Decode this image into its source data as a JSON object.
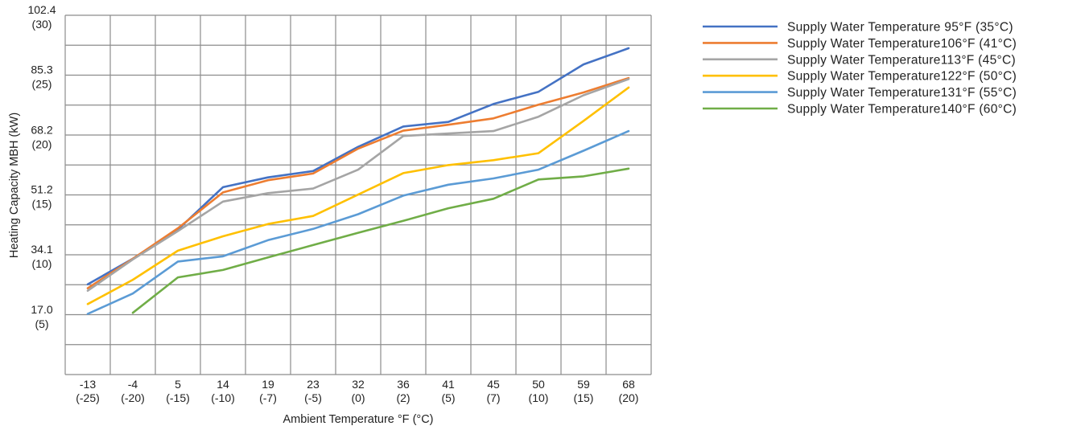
{
  "chart_data": {
    "type": "line",
    "xlabel": "Ambient Temperature °F (°C)",
    "ylabel": "Heating Capacity MBH (kW)",
    "categories": [
      {
        "f": "-13",
        "c": "(-25)"
      },
      {
        "f": "-4",
        "c": "(-20)"
      },
      {
        "f": "5",
        "c": "(-15)"
      },
      {
        "f": "14",
        "c": "(-10)"
      },
      {
        "f": "19",
        "c": "(-7)"
      },
      {
        "f": "23",
        "c": "(-5)"
      },
      {
        "f": "32",
        "c": "(0)"
      },
      {
        "f": "36",
        "c": "(2)"
      },
      {
        "f": "41",
        "c": "(5)"
      },
      {
        "f": "45",
        "c": "(7)"
      },
      {
        "f": "50",
        "c": "(10)"
      },
      {
        "f": "59",
        "c": "(15)"
      },
      {
        "f": "68",
        "c": "(20)"
      }
    ],
    "y_ticks": [
      {
        "mbh": "102.4",
        "kw": "(30)",
        "value": 102.4
      },
      {
        "mbh": "85.3",
        "kw": "(25)",
        "value": 85.3
      },
      {
        "mbh": "68.2",
        "kw": "(20)",
        "value": 68.2
      },
      {
        "mbh": "51.2",
        "kw": "(15)",
        "value": 51.2
      },
      {
        "mbh": "34.1",
        "kw": "(10)",
        "value": 34.1
      },
      {
        "mbh": "17.0",
        "kw": "(5)",
        "value": 17.0
      }
    ],
    "ylim": [
      0,
      102.4
    ],
    "grid": true,
    "legend_position": "top-right",
    "series": [
      {
        "name": "Supply Water Temperature 95°F (35°C)",
        "color": "#4472C4",
        "values": [
          25.7,
          33.0,
          41.3,
          53.4,
          56.2,
          58.0,
          64.9,
          70.7,
          72.0,
          77.1,
          80.6,
          88.4,
          93.0
        ]
      },
      {
        "name": "Supply Water Temperature106°F (41°C)",
        "color": "#ED7D31",
        "values": [
          24.6,
          33.0,
          41.7,
          51.9,
          55.4,
          57.3,
          64.4,
          69.5,
          71.2,
          73.0,
          76.9,
          80.4,
          84.5
        ]
      },
      {
        "name": "Supply Water Temperature113°F (45°C)",
        "color": "#A5A5A5",
        "values": [
          23.9,
          32.8,
          40.9,
          49.3,
          51.7,
          53.0,
          58.4,
          68.0,
          68.7,
          69.4,
          73.5,
          79.6,
          84.2
        ]
      },
      {
        "name": "Supply Water Temperature122°F (50°C)",
        "color": "#FFC000",
        "values": [
          20.1,
          27.0,
          35.3,
          39.4,
          42.9,
          45.2,
          51.3,
          57.4,
          59.7,
          61.1,
          63.1,
          72.3,
          81.8
        ]
      },
      {
        "name": "Supply Water Temperature131°F (55°C)",
        "color": "#5B9BD5",
        "values": [
          17.3,
          23.1,
          32.2,
          33.7,
          38.3,
          41.5,
          45.7,
          51.0,
          54.1,
          55.9,
          58.4,
          63.8,
          69.4
        ]
      },
      {
        "name": "Supply Water Temperature140°F (60°C)",
        "color": "#70AD47",
        "values": [
          null,
          17.6,
          27.7,
          29.8,
          33.4,
          36.9,
          40.4,
          43.8,
          47.4,
          50.1,
          55.6,
          56.5,
          58.7
        ]
      }
    ]
  }
}
